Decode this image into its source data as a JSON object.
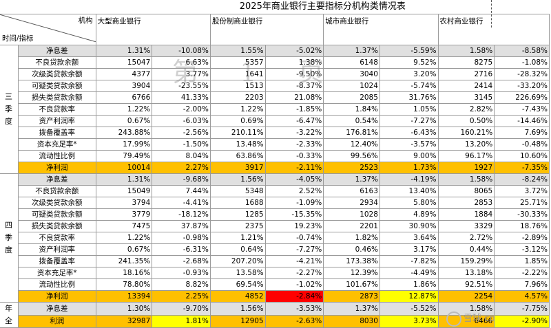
{
  "title": "2025年商业银行主要指标分机构类情况表",
  "header": {
    "corner_top": "机构",
    "corner_bottom": "时间/指标",
    "inst1": "大型商业银行",
    "inst2": "股份制商业银行",
    "inst3": "城市商业银行",
    "inst4": "农村商业银行"
  },
  "q3": {
    "section": "三季度",
    "rows": [
      {
        "label": "净息差",
        "v": [
          "1.31%",
          "-10.08%",
          "1.55%",
          "-5.02%",
          "1.37%",
          "-5.59%",
          "1.58%",
          "-8.58%"
        ]
      },
      {
        "label": "不良贷款余额",
        "v": [
          "15047",
          "6.63%",
          "5357",
          "1.38%",
          "6148",
          "9.52%",
          "8275",
          "-1.08%"
        ]
      },
      {
        "label": "次级类贷款余额",
        "v": [
          "4377",
          "3.77%",
          "1641",
          "-9.50%",
          "3040",
          "3.20%",
          "2716",
          "-28.32%"
        ]
      },
      {
        "label": "可疑类贷款余额",
        "v": [
          "3904",
          "-23.55%",
          "1513",
          "-8.37%",
          "1024",
          "-5.74%",
          "2414",
          "-33.20%"
        ]
      },
      {
        "label": "损失类贷款余额",
        "v": [
          "6766",
          "41.33%",
          "2203",
          "21.08%",
          "2085",
          "31.76%",
          "3145",
          "226.69%"
        ]
      },
      {
        "label": "不良贷款率",
        "v": [
          "1.22%",
          "-2.00%",
          "1.22%",
          "-1.85%",
          "1.84%",
          "1.05%",
          "2.82%",
          "-7.43%"
        ]
      },
      {
        "label": "资产利润率",
        "v": [
          "0.67%",
          "-6.03%",
          "0.69%",
          "-6.47%",
          "0.54%",
          "-7.27%",
          "0.50%",
          "-14.46%"
        ]
      },
      {
        "label": "拨备覆盖率",
        "v": [
          "243.88%",
          "-2.56%",
          "210.11%",
          "-3.22%",
          "176.81%",
          "-6.43%",
          "160.21%",
          "7.69%"
        ]
      },
      {
        "label": "资本充足率*",
        "v": [
          "17.99%",
          "-1.50%",
          "13.48%",
          "-2.33%",
          "12.40%",
          "-3.57%",
          "13.20%",
          "-0.48%"
        ]
      },
      {
        "label": "流动性比例",
        "v": [
          "79.49%",
          "8.04%",
          "63.86%",
          "-0.33%",
          "99.56%",
          "9.00%",
          "96.17%",
          "10.60%"
        ]
      }
    ],
    "profit": {
      "label": "净利润",
      "v": [
        "10014",
        "2.27%",
        "3917",
        "-2.11%",
        "2523",
        "1.73%",
        "1927",
        "-7.35%"
      ]
    }
  },
  "q4": {
    "section": "四季度",
    "rows": [
      {
        "label": "净息差",
        "v": [
          "1.31%",
          "-9.68%",
          "1.56%",
          "-4.05%",
          "1.37%",
          "-4.19%",
          "1.58%",
          "-8.24%"
        ]
      },
      {
        "label": "不良贷款余额",
        "v": [
          "15049",
          "7.44%",
          "5348",
          "2.52%",
          "6163",
          "13.40%",
          "8065",
          "3.72%"
        ]
      },
      {
        "label": "次级类贷款余额",
        "v": [
          "3794",
          "-4.41%",
          "1688",
          "-1.09%",
          "2934",
          "5.80%",
          "2853",
          "25.71%"
        ]
      },
      {
        "label": "可疑类贷款余额",
        "v": [
          "3779",
          "-18.12%",
          "1285",
          "-15.35%",
          "1028",
          "4.89%",
          "1884",
          "-30.33%"
        ]
      },
      {
        "label": "损失类贷款余额",
        "v": [
          "7475",
          "37.87%",
          "2375",
          "19.23%",
          "2201",
          "30.90%",
          "3329",
          "18.76%"
        ]
      },
      {
        "label": "不良贷款率",
        "v": [
          "1.22%",
          "-0.98%",
          "1.21%",
          "-0.74%",
          "1.82%",
          "3.64%",
          "2.72%",
          "-2.89%"
        ]
      },
      {
        "label": "资产利润率",
        "v": [
          "0.67%",
          "-6.31%",
          "0.64%",
          "-7.27%",
          "0.46%",
          "3.17%",
          "0.44%",
          "-3.12%"
        ]
      },
      {
        "label": "拨备覆盖率",
        "v": [
          "241.35%",
          "-2.68%",
          "207.20%",
          "-4.21%",
          "173.38%",
          "-7.82%",
          "159.29%",
          "1.85%"
        ]
      },
      {
        "label": "资本充足率*",
        "v": [
          "18.16%",
          "-0.93%",
          "13.58%",
          "-2.27%",
          "12.39%",
          "-4.49%",
          "13.18%",
          "-2.22%"
        ]
      },
      {
        "label": "流动性比例",
        "v": [
          "78.80%",
          "8.82%",
          "69.54%",
          "-1.02%",
          "101.67%",
          "1.86%",
          "92.51%",
          "7.96%"
        ]
      }
    ],
    "profit": {
      "label": "净利润",
      "v": [
        "13394",
        "2.25%",
        "4852",
        "-2.84%",
        "2873",
        "12.87%",
        "2254",
        "4.57%"
      ]
    }
  },
  "annual": {
    "section": "年全",
    "rows": [
      {
        "label": "净息差",
        "v": [
          "1.30%",
          "-9.70%",
          "1.56%",
          "-3.53%",
          "1.37%",
          "-5.52%",
          "1.58%",
          "-7.75%"
        ]
      }
    ],
    "profit": {
      "label": "利润",
      "v": [
        "32987",
        "1.81%",
        "12905",
        "-2.63%",
        "8030",
        "3.73%",
        "6466",
        "-2.90%"
      ]
    }
  },
  "watermark": "第 1 页",
  "source_mark": "雪球 cp"
}
